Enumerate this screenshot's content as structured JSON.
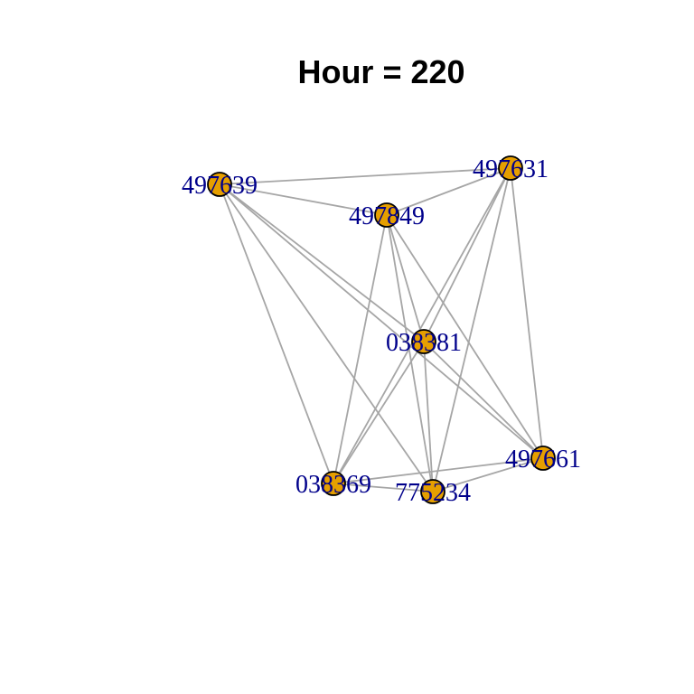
{
  "title": "Hour = 220",
  "colors": {
    "edge": "#a6a6a6",
    "node_fill": "#e69f00",
    "node_stroke": "#000000",
    "label": "#00008b"
  },
  "nodes": [
    {
      "id": "497639",
      "label": "497639"
    },
    {
      "id": "497631",
      "label": "497631"
    },
    {
      "id": "497849",
      "label": "497849"
    },
    {
      "id": "038381",
      "label": "038381"
    },
    {
      "id": "497661",
      "label": "497661"
    },
    {
      "id": "038369",
      "label": "038369"
    },
    {
      "id": "775234",
      "label": "775234"
    }
  ],
  "edges": [
    [
      "497639",
      "497631"
    ],
    [
      "497639",
      "497849"
    ],
    [
      "497639",
      "038381"
    ],
    [
      "497639",
      "497661"
    ],
    [
      "497639",
      "038369"
    ],
    [
      "497639",
      "775234"
    ],
    [
      "497631",
      "497849"
    ],
    [
      "497631",
      "038381"
    ],
    [
      "497631",
      "038369"
    ],
    [
      "497631",
      "775234"
    ],
    [
      "497631",
      "497661"
    ],
    [
      "497849",
      "038369"
    ],
    [
      "497849",
      "775234"
    ],
    [
      "497849",
      "497661"
    ],
    [
      "497849",
      "038381"
    ],
    [
      "038381",
      "038369"
    ],
    [
      "038381",
      "775234"
    ],
    [
      "038381",
      "497661"
    ],
    [
      "038369",
      "497661"
    ],
    [
      "038369",
      "775234"
    ],
    [
      "775234",
      "497661"
    ]
  ]
}
